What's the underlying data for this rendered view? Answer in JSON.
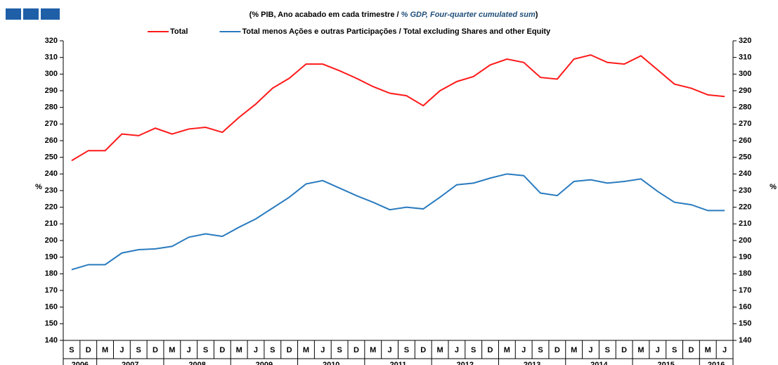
{
  "chart_data": {
    "type": "line",
    "title_parts": [
      "(% PIB, Ano acabado em cada trimestre /",
      "% GDP, Four-quarter cumulated sum",
      ")"
    ],
    "ylabel": "%",
    "y2label": "%",
    "categories": [
      "S",
      "D",
      "M",
      "J",
      "S",
      "D",
      "M",
      "J",
      "S",
      "D",
      "M",
      "J",
      "S",
      "D",
      "M",
      "J",
      "S",
      "D",
      "M",
      "J",
      "S",
      "D",
      "M",
      "J",
      "S",
      "D",
      "M",
      "J",
      "S",
      "D",
      "M",
      "J",
      "S",
      "D",
      "M",
      "J",
      "S",
      "D",
      "M",
      "J"
    ],
    "year_labels": [
      "2006",
      "2007",
      "2008",
      "2009",
      "2010",
      "2011",
      "2012",
      "2013",
      "2014",
      "2015",
      "2016"
    ],
    "series": [
      {
        "name": "Total",
        "color": "#ff1a1a",
        "values": [
          248,
          254,
          254,
          264,
          263,
          267.5,
          264,
          267,
          268,
          265,
          274,
          282,
          291.5,
          297.5,
          306,
          306,
          302,
          297.5,
          292.5,
          288.5,
          287,
          281,
          290,
          295.5,
          298.5,
          305.5,
          309,
          307,
          298,
          297,
          309,
          311.5,
          307,
          306,
          311,
          302.5,
          294,
          291.5,
          287.5,
          286.5
        ]
      },
      {
        "name": "Total menos Ações e outras Participações / Total excluding Shares and other Equity",
        "color": "#2a7bbf",
        "values": [
          182.5,
          185.5,
          185.5,
          192.5,
          194.5,
          195,
          196.5,
          202,
          204,
          202.5,
          208,
          213,
          219.5,
          226,
          234,
          236,
          231.5,
          227,
          223,
          218.5,
          220,
          219,
          226,
          233.5,
          234.5,
          237.5,
          240,
          239,
          228.5,
          227,
          235.5,
          236.5,
          234.5,
          235.5,
          237,
          229.5,
          223,
          221.5,
          218,
          218
        ]
      }
    ],
    "ylim": [
      140,
      320
    ],
    "yticks": [
      140,
      150,
      160,
      170,
      180,
      190,
      200,
      210,
      220,
      230,
      240,
      250,
      260,
      270,
      280,
      290,
      300,
      310,
      320
    ],
    "y2lim": [
      140,
      320
    ],
    "y2ticks": [
      140,
      150,
      160,
      170,
      180,
      190,
      200,
      210,
      220,
      230,
      240,
      250,
      260,
      270,
      280,
      290,
      300,
      310,
      320
    ],
    "legend": "upper center"
  }
}
